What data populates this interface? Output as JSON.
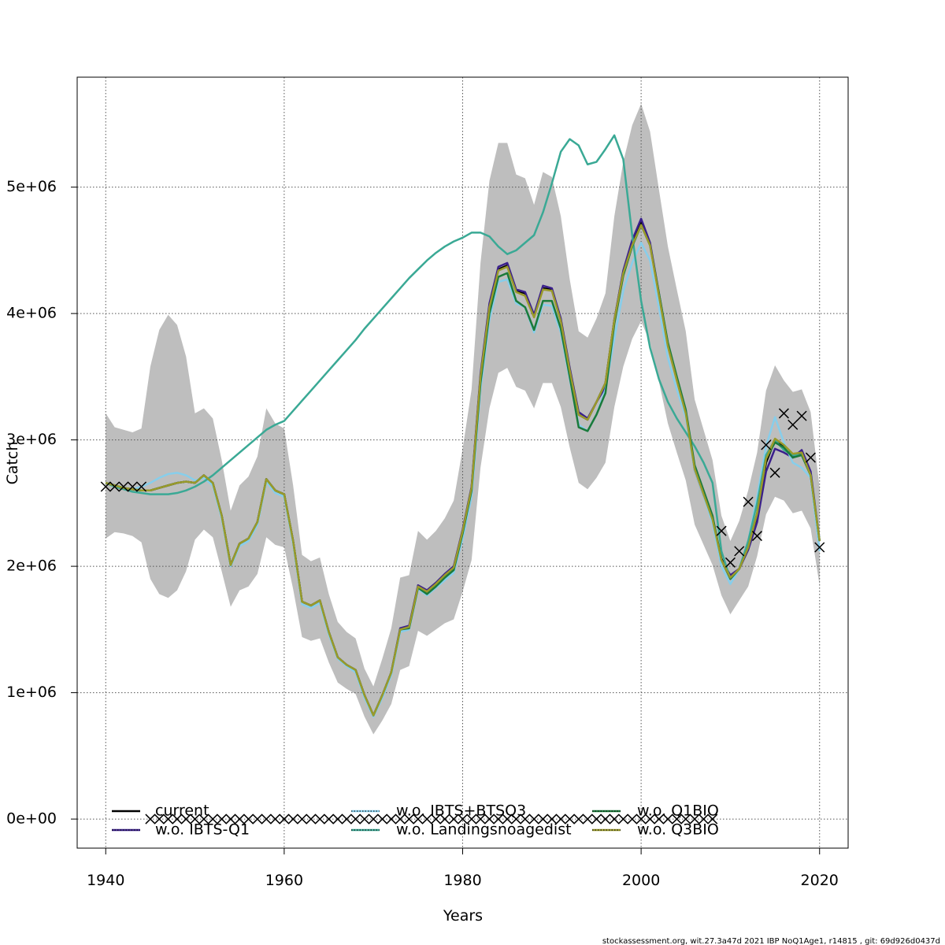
{
  "chart_data": {
    "type": "line",
    "title": "",
    "xlabel": "Years",
    "ylabel": "Catch",
    "xlim": [
      1936.8,
      2023.2
    ],
    "ylim": [
      -230000,
      5870000
    ],
    "grid": true,
    "legend_placement": "bottom",
    "x_ticks": [
      1940,
      1960,
      1980,
      2000,
      2020
    ],
    "x_tick_labels": [
      "1940",
      "1960",
      "1980",
      "2000",
      "2020"
    ],
    "y_ticks": [
      0,
      1000000,
      2000000,
      3000000,
      4000000,
      5000000
    ],
    "y_tick_labels": [
      "0e+00",
      "1e+06",
      "2e+06",
      "3e+06",
      "4e+06",
      "5e+06"
    ],
    "x_start": 1940,
    "unit_multiplier": 1000000,
    "ci_band": {
      "color": "#bebebe",
      "upper": [
        3.21,
        3.1,
        3.08,
        3.06,
        3.09,
        3.58,
        3.87,
        3.99,
        3.91,
        3.66,
        3.21,
        3.25,
        3.17,
        2.84,
        2.44,
        2.64,
        2.71,
        2.87,
        3.25,
        3.13,
        3.09,
        2.64,
        2.09,
        2.04,
        2.07,
        1.78,
        1.56,
        1.48,
        1.43,
        1.19,
        1.05,
        1.27,
        1.51,
        1.91,
        1.93,
        2.28,
        2.21,
        2.28,
        2.38,
        2.52,
        2.93,
        3.4,
        4.4,
        5.05,
        5.35,
        5.35,
        5.1,
        5.07,
        4.86,
        5.12,
        5.08,
        4.77,
        4.27,
        3.86,
        3.81,
        3.96,
        4.16,
        4.77,
        5.2,
        5.49,
        5.66,
        5.44,
        4.98,
        4.53,
        4.19,
        3.86,
        3.32,
        3.08,
        2.84,
        2.4,
        2.2,
        2.36,
        2.6,
        2.9,
        3.39,
        3.59,
        3.47,
        3.38,
        3.4,
        3.22,
        2.62
      ],
      "lower": [
        2.22,
        2.27,
        2.26,
        2.24,
        2.19,
        1.9,
        1.78,
        1.75,
        1.81,
        1.96,
        2.21,
        2.29,
        2.23,
        1.96,
        1.68,
        1.81,
        1.84,
        1.94,
        2.23,
        2.17,
        2.15,
        1.82,
        1.44,
        1.41,
        1.43,
        1.24,
        1.08,
        1.03,
        0.99,
        0.81,
        0.67,
        0.78,
        0.91,
        1.18,
        1.21,
        1.49,
        1.45,
        1.5,
        1.55,
        1.58,
        1.8,
        2.05,
        2.78,
        3.25,
        3.53,
        3.57,
        3.42,
        3.39,
        3.25,
        3.45,
        3.45,
        3.26,
        2.94,
        2.66,
        2.61,
        2.7,
        2.82,
        3.26,
        3.58,
        3.8,
        3.94,
        3.77,
        3.46,
        3.13,
        2.9,
        2.68,
        2.33,
        2.17,
        2.01,
        1.77,
        1.62,
        1.73,
        1.84,
        2.08,
        2.41,
        2.55,
        2.52,
        2.42,
        2.44,
        2.3,
        1.85
      ]
    },
    "series": [
      {
        "name": "current",
        "color": "#000000",
        "values": [
          2.66,
          2.64,
          2.62,
          2.61,
          2.6,
          2.6,
          2.62,
          2.64,
          2.66,
          2.67,
          2.66,
          2.72,
          2.66,
          2.4,
          2.01,
          2.18,
          2.22,
          2.35,
          2.69,
          2.6,
          2.57,
          2.2,
          1.72,
          1.69,
          1.73,
          1.48,
          1.28,
          1.22,
          1.18,
          0.98,
          0.82,
          0.98,
          1.16,
          1.5,
          1.52,
          1.84,
          1.8,
          1.86,
          1.93,
          1.99,
          2.28,
          2.62,
          3.5,
          4.05,
          4.35,
          4.38,
          4.18,
          4.16,
          3.98,
          4.2,
          4.19,
          3.95,
          3.55,
          3.2,
          3.16,
          3.3,
          3.45,
          3.95,
          4.33,
          4.55,
          4.72,
          4.55,
          4.15,
          3.75,
          3.48,
          3.22,
          2.78,
          2.58,
          2.38,
          2.06,
          1.92,
          1.98,
          2.15,
          2.4,
          2.82,
          3.0,
          2.95,
          2.88,
          2.9,
          2.72,
          2.2
        ]
      },
      {
        "name": "w.o. IBTS-Q1",
        "color": "#3a1f8c",
        "values": [
          2.66,
          2.64,
          2.62,
          2.61,
          2.6,
          2.6,
          2.62,
          2.64,
          2.66,
          2.67,
          2.66,
          2.72,
          2.66,
          2.4,
          2.01,
          2.18,
          2.22,
          2.35,
          2.69,
          2.6,
          2.57,
          2.2,
          1.72,
          1.69,
          1.73,
          1.48,
          1.28,
          1.22,
          1.18,
          0.98,
          0.82,
          0.98,
          1.16,
          1.51,
          1.53,
          1.85,
          1.81,
          1.87,
          1.94,
          2.0,
          2.29,
          2.63,
          3.52,
          4.08,
          4.37,
          4.4,
          4.19,
          4.17,
          3.99,
          4.22,
          4.2,
          3.96,
          3.57,
          3.22,
          3.17,
          3.3,
          3.42,
          3.95,
          4.34,
          4.58,
          4.75,
          4.56,
          4.16,
          3.76,
          3.48,
          3.22,
          2.76,
          2.56,
          2.36,
          2.05,
          1.93,
          1.98,
          2.13,
          2.35,
          2.75,
          2.93,
          2.9,
          2.86,
          2.92,
          2.75,
          2.2
        ]
      },
      {
        "name": "w.o. IBTS+BTSQ3",
        "color": "#87ceeb",
        "values": [
          2.66,
          2.64,
          2.62,
          2.61,
          2.63,
          2.66,
          2.7,
          2.73,
          2.74,
          2.72,
          2.68,
          2.7,
          2.64,
          2.38,
          2.0,
          2.16,
          2.2,
          2.33,
          2.67,
          2.58,
          2.55,
          2.18,
          1.7,
          1.67,
          1.71,
          1.46,
          1.27,
          1.21,
          1.16,
          0.96,
          0.81,
          0.96,
          1.14,
          1.48,
          1.5,
          1.82,
          1.77,
          1.83,
          1.89,
          1.95,
          2.22,
          2.55,
          3.4,
          3.95,
          4.25,
          4.27,
          4.08,
          4.05,
          3.85,
          4.07,
          4.06,
          3.85,
          3.48,
          3.12,
          3.07,
          3.2,
          3.4,
          3.8,
          4.18,
          4.4,
          4.56,
          4.42,
          4.05,
          3.65,
          3.4,
          3.18,
          2.76,
          2.56,
          2.34,
          2.0,
          1.86,
          1.98,
          2.2,
          2.55,
          2.95,
          3.18,
          2.98,
          2.82,
          2.78,
          2.7,
          2.12
        ]
      },
      {
        "name": "w.o. Landingsnoagedist",
        "color": "#3aa995",
        "values": [
          2.66,
          2.63,
          2.61,
          2.59,
          2.58,
          2.57,
          2.57,
          2.57,
          2.58,
          2.6,
          2.63,
          2.67,
          2.72,
          2.78,
          2.84,
          2.9,
          2.96,
          3.02,
          3.08,
          3.12,
          3.15,
          3.23,
          3.31,
          3.39,
          3.47,
          3.55,
          3.63,
          3.71,
          3.79,
          3.88,
          3.96,
          4.04,
          4.12,
          4.2,
          4.28,
          4.35,
          4.42,
          4.48,
          4.53,
          4.57,
          4.6,
          4.64,
          4.64,
          4.61,
          4.53,
          4.47,
          4.5,
          4.56,
          4.62,
          4.8,
          5.03,
          5.28,
          5.38,
          5.33,
          5.18,
          5.2,
          5.3,
          5.41,
          5.22,
          4.62,
          4.1,
          3.73,
          3.48,
          3.3,
          3.17,
          3.06,
          2.95,
          2.82,
          2.66,
          2.12,
          1.9,
          1.98,
          2.2,
          2.5,
          2.88,
          3.0,
          2.92,
          2.88,
          2.88,
          2.72,
          2.2
        ]
      },
      {
        "name": "w.o. Q1BIO",
        "color": "#1a7a3a",
        "values": [
          2.66,
          2.64,
          2.62,
          2.61,
          2.6,
          2.6,
          2.62,
          2.64,
          2.66,
          2.67,
          2.66,
          2.72,
          2.66,
          2.4,
          2.01,
          2.18,
          2.22,
          2.35,
          2.69,
          2.6,
          2.57,
          2.2,
          1.72,
          1.69,
          1.73,
          1.48,
          1.28,
          1.22,
          1.18,
          0.98,
          0.82,
          0.98,
          1.16,
          1.5,
          1.51,
          1.83,
          1.78,
          1.84,
          1.91,
          1.97,
          2.26,
          2.6,
          3.45,
          4.0,
          4.29,
          4.32,
          4.1,
          4.05,
          3.87,
          4.1,
          4.1,
          3.88,
          3.5,
          3.1,
          3.07,
          3.2,
          3.37,
          3.92,
          4.3,
          4.53,
          4.7,
          4.54,
          4.16,
          3.77,
          3.5,
          3.24,
          2.8,
          2.6,
          2.4,
          2.05,
          1.9,
          1.98,
          2.15,
          2.42,
          2.85,
          2.98,
          2.94,
          2.86,
          2.88,
          2.72,
          2.2
        ]
      },
      {
        "name": "w.o. Q3BIO",
        "color": "#9a9a2a",
        "values": [
          2.66,
          2.64,
          2.62,
          2.61,
          2.6,
          2.6,
          2.62,
          2.64,
          2.66,
          2.67,
          2.66,
          2.72,
          2.66,
          2.4,
          2.01,
          2.18,
          2.22,
          2.35,
          2.69,
          2.6,
          2.57,
          2.2,
          1.72,
          1.69,
          1.73,
          1.48,
          1.28,
          1.22,
          1.18,
          0.98,
          0.82,
          0.98,
          1.16,
          1.5,
          1.52,
          1.84,
          1.8,
          1.86,
          1.93,
          1.99,
          2.28,
          2.62,
          3.5,
          4.05,
          4.34,
          4.37,
          4.17,
          4.14,
          3.97,
          4.19,
          4.18,
          3.94,
          3.55,
          3.2,
          3.16,
          3.3,
          3.45,
          3.95,
          4.32,
          4.54,
          4.7,
          4.54,
          4.14,
          3.74,
          3.47,
          3.21,
          2.77,
          2.57,
          2.37,
          2.05,
          1.91,
          1.98,
          2.15,
          2.42,
          2.85,
          3.01,
          2.96,
          2.89,
          2.9,
          2.72,
          2.2
        ]
      }
    ],
    "observed": {
      "marker": "x",
      "years": [
        1940,
        1941,
        1942,
        1943,
        1944,
        1945,
        1946,
        1947,
        1948,
        1949,
        1950,
        1951,
        1952,
        1953,
        1954,
        1955,
        1956,
        1957,
        1958,
        1959,
        1960,
        1961,
        1962,
        1963,
        1964,
        1965,
        1966,
        1967,
        1968,
        1969,
        1970,
        1971,
        1972,
        1973,
        1974,
        1975,
        1976,
        1977,
        1978,
        1979,
        1980,
        1981,
        1982,
        1983,
        1984,
        1985,
        1986,
        1987,
        1988,
        1989,
        1990,
        1991,
        1992,
        1993,
        1994,
        1995,
        1996,
        1997,
        1998,
        1999,
        2000,
        2001,
        2002,
        2003,
        2004,
        2005,
        2006,
        2007,
        2008,
        2009,
        2010,
        2011,
        2012,
        2013,
        2014,
        2015,
        2016,
        2017,
        2018,
        2019,
        2020
      ],
      "values": [
        2.63,
        2.63,
        2.63,
        2.63,
        2.63,
        0,
        0,
        0,
        0,
        0,
        0,
        0,
        0,
        0,
        0,
        0,
        0,
        0,
        0,
        0,
        0,
        0,
        0,
        0,
        0,
        0,
        0,
        0,
        0,
        0,
        0,
        0,
        0,
        0,
        0,
        0,
        0,
        0,
        0,
        0,
        0,
        0,
        0,
        0,
        0,
        0,
        0,
        0,
        0,
        0,
        0,
        0,
        0,
        0,
        0,
        0,
        0,
        0,
        0,
        0,
        0,
        0,
        0,
        0,
        0,
        0,
        0,
        0,
        0,
        2.28,
        2.03,
        2.12,
        2.51,
        2.24,
        2.96,
        2.74,
        3.21,
        3.12,
        3.19,
        2.86,
        2.15
      ]
    }
  },
  "footer": "stockassessment.org, wit.27.3a47d  2021  IBP  NoQ1Age1, r14815 , git: 69d926d0437d"
}
